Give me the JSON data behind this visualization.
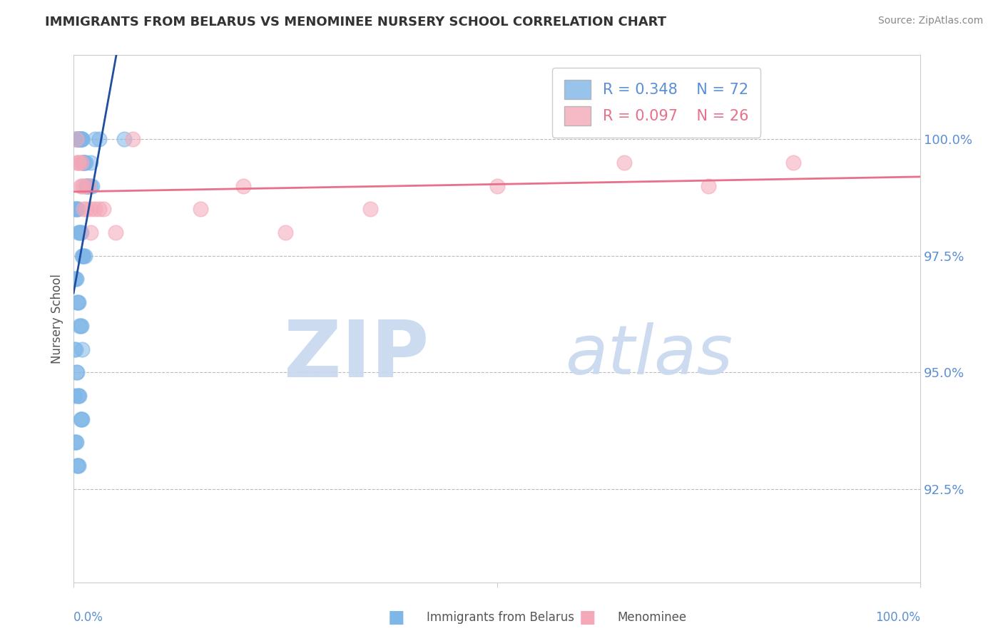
{
  "title": "IMMIGRANTS FROM BELARUS VS MENOMINEE NURSERY SCHOOL CORRELATION CHART",
  "source": "Source: ZipAtlas.com",
  "xlabel_bottom_left": "0.0%",
  "xlabel_bottom_right": "100.0%",
  "ylabel": "Nursery School",
  "yticks": [
    92.5,
    95.0,
    97.5,
    100.0
  ],
  "ytick_labels": [
    "92.5%",
    "95.0%",
    "97.5%",
    "100.0%"
  ],
  "xlim": [
    0.0,
    100.0
  ],
  "ylim": [
    90.5,
    101.8
  ],
  "blue_label": "Immigrants from Belarus",
  "pink_label": "Menominee",
  "blue_R": 0.348,
  "blue_N": 72,
  "pink_R": 0.097,
  "pink_N": 26,
  "blue_color": "#7EB6E8",
  "pink_color": "#F4A8B8",
  "blue_line_color": "#1F4F9E",
  "pink_line_color": "#E8708A",
  "watermark_zip": "ZIP",
  "watermark_atlas": "atlas",
  "watermark_color": "#C8D8F0",
  "background_color": "#FFFFFF",
  "grid_color": "#BBBBBB",
  "title_color": "#333333",
  "axis_label_color": "#555555",
  "tick_label_color": "#5B8FD4",
  "blue_scatter_x": [
    0.2,
    0.3,
    0.4,
    0.5,
    0.5,
    0.6,
    0.6,
    0.7,
    0.7,
    0.8,
    0.8,
    0.9,
    0.9,
    1.0,
    1.0,
    1.1,
    1.1,
    1.2,
    1.2,
    1.3,
    1.4,
    1.5,
    1.5,
    1.6,
    1.7,
    1.8,
    2.0,
    2.2,
    0.1,
    0.2,
    0.3,
    0.4,
    0.5,
    0.6,
    0.7,
    0.8,
    0.9,
    1.0,
    1.1,
    1.2,
    1.3,
    0.1,
    0.2,
    0.3,
    0.4,
    0.5,
    0.6,
    0.7,
    0.8,
    0.9,
    1.0,
    0.1,
    0.2,
    0.3,
    0.4,
    0.5,
    0.6,
    0.7,
    0.8,
    0.9,
    1.0,
    0.1,
    0.2,
    0.3,
    0.4,
    0.5,
    0.6,
    2.5,
    3.0,
    6.0,
    0.1,
    2.0
  ],
  "blue_scatter_y": [
    100.0,
    100.0,
    100.0,
    100.0,
    100.0,
    100.0,
    100.0,
    100.0,
    100.0,
    100.0,
    100.0,
    100.0,
    100.0,
    100.0,
    100.0,
    99.5,
    99.5,
    99.5,
    99.5,
    99.5,
    99.5,
    99.0,
    99.0,
    99.0,
    99.0,
    99.0,
    99.0,
    99.0,
    98.5,
    98.5,
    98.5,
    98.5,
    98.5,
    98.0,
    98.0,
    98.0,
    98.0,
    97.5,
    97.5,
    97.5,
    97.5,
    97.0,
    97.0,
    97.0,
    96.5,
    96.5,
    96.5,
    96.0,
    96.0,
    96.0,
    95.5,
    95.5,
    95.5,
    95.0,
    95.0,
    94.5,
    94.5,
    94.5,
    94.0,
    94.0,
    94.0,
    93.5,
    93.5,
    93.5,
    93.0,
    93.0,
    93.0,
    100.0,
    100.0,
    100.0,
    94.5,
    99.5
  ],
  "pink_scatter_x": [
    0.3,
    0.5,
    0.7,
    0.9,
    1.0,
    1.2,
    1.5,
    1.8,
    2.0,
    2.5,
    3.0,
    3.5,
    5.0,
    7.0,
    0.4,
    0.8,
    1.2,
    2.0,
    15.0,
    20.0,
    25.0,
    35.0,
    50.0,
    65.0,
    75.0,
    85.0
  ],
  "pink_scatter_y": [
    100.0,
    99.5,
    99.5,
    99.5,
    99.0,
    99.0,
    98.5,
    99.0,
    98.5,
    98.5,
    98.5,
    98.5,
    98.0,
    100.0,
    99.5,
    99.0,
    98.5,
    98.0,
    98.5,
    99.0,
    98.0,
    98.5,
    99.0,
    99.5,
    99.0,
    99.5
  ]
}
